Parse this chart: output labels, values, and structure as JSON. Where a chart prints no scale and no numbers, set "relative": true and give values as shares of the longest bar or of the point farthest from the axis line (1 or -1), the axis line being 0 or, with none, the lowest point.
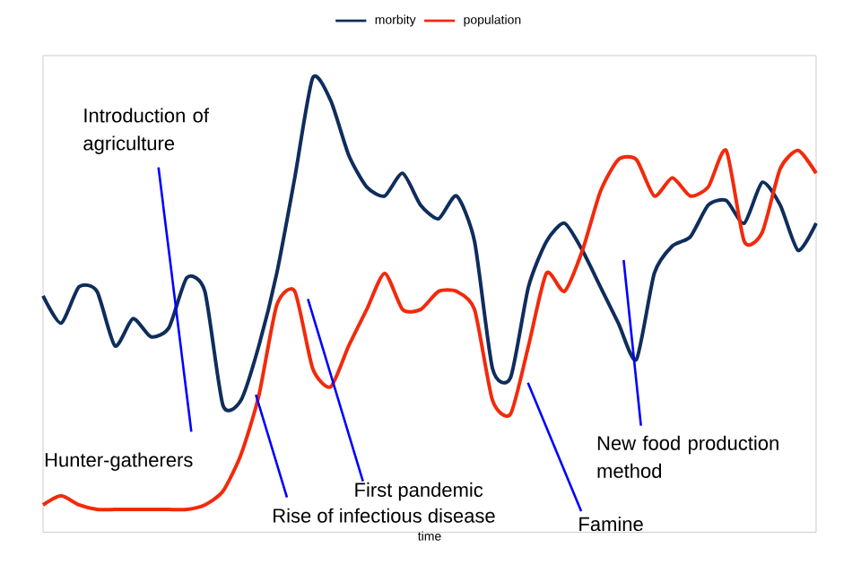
{
  "chart_data": {
    "type": "line",
    "relative": true,
    "xlabel": "time",
    "legend": "top",
    "marker": "none",
    "line_style": "solid",
    "categories": [
      null,
      null,
      null,
      null,
      null,
      null,
      null,
      null,
      null,
      null,
      null,
      null,
      null,
      null,
      null,
      null,
      null,
      null,
      null,
      null,
      null,
      null,
      null,
      null,
      null,
      null,
      null,
      null,
      null,
      null,
      null,
      null,
      null,
      null,
      null,
      null,
      null,
      null,
      null,
      null,
      null,
      null,
      null,
      null
    ],
    "series": [
      {
        "name": "morbity",
        "color": "#0f2d5c",
        "values": [
          0.52,
          0.46,
          0.54,
          0.53,
          0.41,
          0.47,
          0.43,
          0.45,
          0.56,
          0.53,
          0.28,
          0.29,
          0.41,
          0.57,
          0.78,
          1.0,
          0.95,
          0.83,
          0.76,
          0.74,
          0.79,
          0.72,
          0.69,
          0.74,
          0.64,
          0.36,
          0.34,
          0.54,
          0.64,
          0.68,
          0.62,
          0.54,
          0.46,
          0.38,
          0.57,
          0.63,
          0.65,
          0.72,
          0.73,
          0.68,
          0.77,
          0.72,
          0.62,
          0.68
        ]
      },
      {
        "name": "population",
        "color": "#f22a0c",
        "values": [
          0.06,
          0.08,
          0.06,
          0.05,
          0.05,
          0.05,
          0.05,
          0.05,
          0.05,
          0.06,
          0.09,
          0.17,
          0.3,
          0.5,
          0.53,
          0.36,
          0.32,
          0.41,
          0.49,
          0.57,
          0.49,
          0.49,
          0.53,
          0.53,
          0.49,
          0.29,
          0.26,
          0.41,
          0.57,
          0.53,
          0.62,
          0.75,
          0.82,
          0.82,
          0.74,
          0.78,
          0.74,
          0.76,
          0.84,
          0.64,
          0.66,
          0.8,
          0.84,
          0.79
        ]
      }
    ],
    "annotations": [
      "Introduction of agriculture",
      "Hunter-gatherers",
      "First pandemic",
      "Rise of infectious disease",
      "Famine",
      "New food production method"
    ]
  }
}
